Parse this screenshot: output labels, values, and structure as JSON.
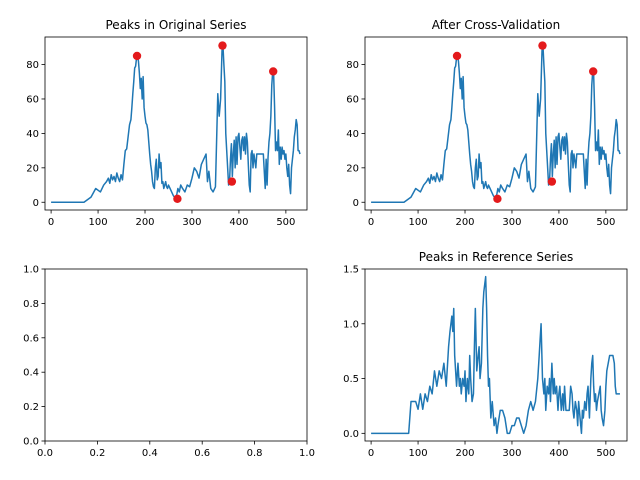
{
  "chart_data": [
    {
      "type": "line",
      "title": "Peaks in Original Series",
      "xlim": [
        -13,
        545
      ],
      "ylim": [
        -4.5,
        96
      ],
      "xticks": [
        0,
        100,
        200,
        300,
        400,
        500
      ],
      "yticks": [
        0,
        20,
        40,
        60,
        80
      ],
      "series": [
        {
          "name": "series",
          "x": [
            0,
            70,
            85,
            95,
            105,
            112,
            118,
            122,
            125,
            128,
            131,
            134,
            137,
            140,
            143,
            146,
            149,
            152,
            155,
            158,
            161,
            164,
            167,
            170,
            172,
            174,
            176,
            178,
            180,
            182,
            184,
            186,
            188,
            190,
            192,
            194,
            196,
            198,
            200,
            202,
            204,
            206,
            208,
            210,
            212,
            214,
            216,
            218,
            220,
            222,
            224,
            226,
            228,
            230,
            232,
            234,
            236,
            238,
            240,
            242,
            244,
            246,
            248,
            250,
            255,
            260,
            265,
            268,
            270,
            273,
            276,
            280,
            285,
            290,
            295,
            300,
            305,
            310,
            315,
            320,
            325,
            330,
            333,
            336,
            340,
            345,
            350,
            355,
            358,
            361,
            364,
            366,
            368,
            370,
            372,
            374,
            376,
            378,
            380,
            382,
            384,
            386,
            388,
            390,
            392,
            394,
            396,
            398,
            400,
            402,
            404,
            406,
            408,
            410,
            412,
            414,
            416,
            418,
            420,
            422,
            424,
            426,
            428,
            430,
            432,
            434,
            436,
            438,
            440,
            442,
            444,
            446,
            448,
            450,
            452,
            454,
            456,
            458,
            460,
            462,
            464,
            466,
            468,
            470,
            472,
            474,
            476,
            478,
            480,
            482,
            484,
            486,
            488,
            490,
            492,
            494,
            496,
            498,
            500,
            502,
            504,
            506,
            508,
            510,
            512,
            514,
            516,
            518,
            520,
            522,
            524,
            526,
            528,
            530
          ],
          "values": [
            0,
            0,
            3,
            8,
            6,
            10,
            12,
            14,
            11,
            16,
            13,
            15,
            12,
            17,
            14,
            12,
            16,
            13,
            22,
            30,
            31,
            38,
            45,
            48,
            55,
            63,
            70,
            78,
            79,
            84,
            85,
            82,
            75,
            66,
            72,
            60,
            73,
            55,
            50,
            46,
            45,
            42,
            35,
            28,
            22,
            18,
            12,
            9,
            8,
            20,
            25,
            13,
            15,
            28,
            20,
            23,
            11,
            12,
            8,
            10,
            12,
            9,
            8,
            10,
            7,
            4,
            2,
            5,
            8,
            6,
            10,
            8,
            6,
            10,
            9,
            14,
            20,
            18,
            14,
            22,
            25,
            28,
            12,
            18,
            8,
            6,
            9,
            63,
            50,
            60,
            88,
            91,
            80,
            70,
            40,
            30,
            20,
            10,
            12,
            25,
            34,
            15,
            28,
            36,
            20,
            38,
            22,
            38,
            40,
            32,
            25,
            36,
            38,
            30,
            38,
            28,
            40,
            35,
            22,
            10,
            6,
            28,
            30,
            20,
            28,
            24,
            20,
            28,
            28,
            28,
            28,
            28,
            28,
            28,
            28,
            18,
            8,
            25,
            10,
            26,
            35,
            40,
            50,
            68,
            76,
            74,
            55,
            30,
            35,
            30,
            42,
            22,
            32,
            25,
            32,
            28,
            30,
            25,
            28,
            20,
            15,
            22,
            10,
            5,
            20,
            25,
            30,
            38,
            42,
            48,
            45,
            30,
            30,
            28
          ]
        }
      ],
      "peaks": [
        {
          "x": 183,
          "y": 85
        },
        {
          "x": 269,
          "y": 2
        },
        {
          "x": 365,
          "y": 91
        },
        {
          "x": 385,
          "y": 12
        },
        {
          "x": 473,
          "y": 76
        }
      ]
    },
    {
      "type": "line",
      "title": "After Cross-Validation",
      "xlim": [
        -13,
        545
      ],
      "ylim": [
        -4.5,
        96
      ],
      "xticks": [
        0,
        100,
        200,
        300,
        400,
        500
      ],
      "yticks": [
        0,
        20,
        40,
        60,
        80
      ],
      "series": [
        {
          "name": "series",
          "x": [
            0,
            70,
            85,
            95,
            105,
            112,
            118,
            122,
            125,
            128,
            131,
            134,
            137,
            140,
            143,
            146,
            149,
            152,
            155,
            158,
            161,
            164,
            167,
            170,
            172,
            174,
            176,
            178,
            180,
            182,
            184,
            186,
            188,
            190,
            192,
            194,
            196,
            198,
            200,
            202,
            204,
            206,
            208,
            210,
            212,
            214,
            216,
            218,
            220,
            222,
            224,
            226,
            228,
            230,
            232,
            234,
            236,
            238,
            240,
            242,
            244,
            246,
            248,
            250,
            255,
            260,
            265,
            268,
            270,
            273,
            276,
            280,
            285,
            290,
            295,
            300,
            305,
            310,
            315,
            320,
            325,
            330,
            333,
            336,
            340,
            345,
            350,
            355,
            358,
            361,
            364,
            366,
            368,
            370,
            372,
            374,
            376,
            378,
            380,
            382,
            384,
            386,
            388,
            390,
            392,
            394,
            396,
            398,
            400,
            402,
            404,
            406,
            408,
            410,
            412,
            414,
            416,
            418,
            420,
            422,
            424,
            426,
            428,
            430,
            432,
            434,
            436,
            438,
            440,
            442,
            444,
            446,
            448,
            450,
            452,
            454,
            456,
            458,
            460,
            462,
            464,
            466,
            468,
            470,
            472,
            474,
            476,
            478,
            480,
            482,
            484,
            486,
            488,
            490,
            492,
            494,
            496,
            498,
            500,
            502,
            504,
            506,
            508,
            510,
            512,
            514,
            516,
            518,
            520,
            522,
            524,
            526,
            528,
            530
          ],
          "values": [
            0,
            0,
            3,
            8,
            6,
            10,
            12,
            14,
            11,
            16,
            13,
            15,
            12,
            17,
            14,
            12,
            16,
            13,
            22,
            30,
            31,
            38,
            45,
            48,
            55,
            63,
            70,
            78,
            79,
            84,
            85,
            82,
            75,
            66,
            72,
            60,
            73,
            55,
            50,
            46,
            45,
            42,
            35,
            28,
            22,
            18,
            12,
            9,
            8,
            20,
            25,
            13,
            15,
            28,
            20,
            23,
            11,
            12,
            8,
            10,
            12,
            9,
            8,
            10,
            7,
            4,
            2,
            5,
            8,
            6,
            10,
            8,
            6,
            10,
            9,
            14,
            20,
            18,
            14,
            22,
            25,
            28,
            12,
            18,
            8,
            6,
            9,
            63,
            50,
            60,
            88,
            91,
            80,
            70,
            40,
            30,
            20,
            10,
            12,
            25,
            34,
            15,
            28,
            36,
            20,
            38,
            22,
            38,
            40,
            32,
            25,
            36,
            38,
            30,
            38,
            28,
            40,
            35,
            22,
            10,
            6,
            28,
            30,
            20,
            28,
            24,
            20,
            28,
            28,
            28,
            28,
            28,
            28,
            28,
            28,
            18,
            8,
            25,
            10,
            26,
            35,
            40,
            50,
            68,
            76,
            74,
            55,
            30,
            35,
            30,
            42,
            22,
            32,
            25,
            32,
            28,
            30,
            25,
            28,
            20,
            15,
            22,
            10,
            5,
            20,
            25,
            30,
            38,
            42,
            48,
            45,
            30,
            30,
            28
          ]
        }
      ],
      "peaks": [
        {
          "x": 183,
          "y": 85
        },
        {
          "x": 269,
          "y": 2
        },
        {
          "x": 365,
          "y": 91
        },
        {
          "x": 385,
          "y": 12
        },
        {
          "x": 473,
          "y": 76
        }
      ]
    },
    {
      "type": "line",
      "title": "",
      "xlim": [
        0,
        1
      ],
      "ylim": [
        0,
        1
      ],
      "xticks": [
        0.0,
        0.2,
        0.4,
        0.6,
        0.8,
        1.0
      ],
      "yticks": [
        0.0,
        0.2,
        0.4,
        0.6,
        0.8,
        1.0
      ],
      "xtick_labels": [
        "0.0",
        "0.2",
        "0.4",
        "0.6",
        "0.8",
        "1.0"
      ],
      "ytick_labels": [
        "0.0",
        "0.2",
        "0.4",
        "0.6",
        "0.8",
        "1.0"
      ],
      "series": []
    },
    {
      "type": "line",
      "title": "Peaks in Reference Series",
      "xlim": [
        -13,
        545
      ],
      "ylim": [
        -0.07,
        1.5
      ],
      "xticks": [
        0,
        100,
        200,
        300,
        400,
        500
      ],
      "yticks": [
        0.0,
        0.5,
        1.0,
        1.5
      ],
      "ytick_labels": [
        "0.0",
        "0.5",
        "1.0",
        "1.5"
      ],
      "series": [
        {
          "name": "reference",
          "x": [
            0,
            80,
            85,
            95,
            100,
            105,
            110,
            115,
            120,
            125,
            130,
            135,
            140,
            145,
            150,
            155,
            160,
            165,
            168,
            170,
            172,
            174,
            176,
            178,
            180,
            182,
            185,
            188,
            190,
            192,
            195,
            198,
            200,
            202,
            205,
            208,
            210,
            212,
            215,
            218,
            220,
            222,
            225,
            228,
            230,
            232,
            235,
            238,
            240,
            242,
            244,
            246,
            248,
            250,
            252,
            255,
            258,
            262,
            265,
            268,
            270,
            275,
            280,
            285,
            290,
            295,
            300,
            305,
            310,
            315,
            320,
            325,
            330,
            335,
            340,
            345,
            350,
            355,
            358,
            360,
            362,
            365,
            368,
            370,
            372,
            375,
            378,
            380,
            382,
            385,
            388,
            390,
            392,
            395,
            398,
            400,
            402,
            405,
            408,
            410,
            412,
            415,
            418,
            420,
            422,
            425,
            428,
            430,
            432,
            435,
            438,
            440,
            442,
            445,
            448,
            450,
            452,
            455,
            458,
            460,
            462,
            465,
            468,
            470,
            472,
            474,
            476,
            478,
            480,
            482,
            485,
            488,
            490,
            492,
            495,
            498,
            500,
            502,
            505,
            508,
            510,
            512,
            515,
            518,
            520,
            522,
            525,
            528,
            530
          ],
          "values": [
            0,
            0,
            0.29,
            0.29,
            0.22,
            0.36,
            0.22,
            0.36,
            0.29,
            0.43,
            0.36,
            0.57,
            0.43,
            0.57,
            0.5,
            0.64,
            0.43,
            0.79,
            0.93,
            1.0,
            1.07,
            0.93,
            1.14,
            0.71,
            0.57,
            0.43,
            0.64,
            0.43,
            0.5,
            0.36,
            0.5,
            0.43,
            0.57,
            0.29,
            0.5,
            0.36,
            0.71,
            0.5,
            0.29,
            0.36,
            0.79,
            1.14,
            0.57,
            0.71,
            0.79,
            0.5,
            0.64,
            1.14,
            1.29,
            1.36,
            1.43,
            1.14,
            0.71,
            0.43,
            0.5,
            0.14,
            0.29,
            0.07,
            0.14,
            0.0,
            0.07,
            0.21,
            0.21,
            0.14,
            0.0,
            0.0,
            0.07,
            0.07,
            0.14,
            0.14,
            0.07,
            0.0,
            0.07,
            0.21,
            0.29,
            0.21,
            0.29,
            0.5,
            0.71,
            0.86,
            1.0,
            0.5,
            0.36,
            0.5,
            0.21,
            0.43,
            0.36,
            0.5,
            0.29,
            0.64,
            0.36,
            0.5,
            0.36,
            0.43,
            0.21,
            0.36,
            0.43,
            0.21,
            0.36,
            0.21,
            0.43,
            0.21,
            0.21,
            0.21,
            0.21,
            0.43,
            0.36,
            0.21,
            0.14,
            0.29,
            0.21,
            0.07,
            0.29,
            0.14,
            0.0,
            0.21,
            0.14,
            0.29,
            0.21,
            0.36,
            0.43,
            0.14,
            0.5,
            0.64,
            0.71,
            0.43,
            0.29,
            0.36,
            0.21,
            0.29,
            0.36,
            0.43,
            0.21,
            0.14,
            0.07,
            0.21,
            0.43,
            0.57,
            0.64,
            0.71,
            0.71,
            0.71,
            0.71,
            0.64,
            0.43,
            0.36,
            0.36,
            0.36,
            0.36
          ]
        }
      ]
    }
  ]
}
